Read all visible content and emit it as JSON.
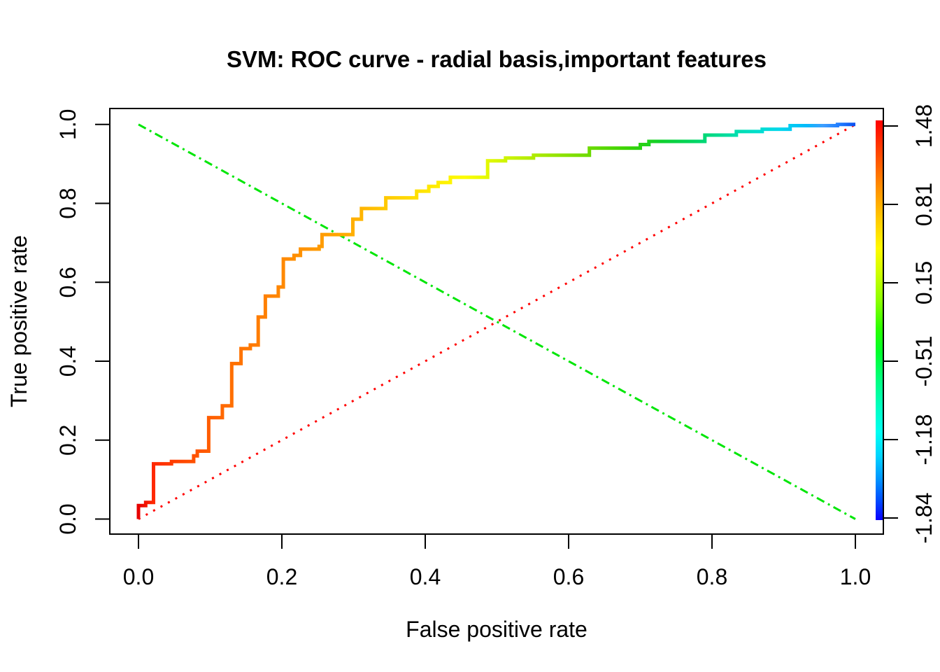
{
  "chart_data": {
    "type": "line",
    "title": "SVM: ROC curve - radial basis,important features",
    "xlabel": "False positive rate",
    "ylabel": "True positive rate",
    "xlim": [
      0,
      1
    ],
    "ylim": [
      0,
      1
    ],
    "grid": false,
    "background": "#FFFFFF",
    "x_tick_labels": [
      "0.0",
      "0.2",
      "0.4",
      "0.6",
      "0.8",
      "1.0"
    ],
    "y_tick_labels": [
      "0.0",
      "0.2",
      "0.4",
      "0.6",
      "0.8",
      "1.0"
    ],
    "series": [
      {
        "name": "roc-curve",
        "description": "SVM ROC step curve, colored by cutoff threshold (rainbow: red = high cutoff 1.48, blue = low cutoff -1.84)",
        "style": "step-solid",
        "stroke_width": 5,
        "points": [
          [
            0.0,
            0.0
          ],
          [
            0.0,
            0.034
          ],
          [
            0.01,
            0.034
          ],
          [
            0.01,
            0.042
          ],
          [
            0.021,
            0.042
          ],
          [
            0.021,
            0.14
          ],
          [
            0.046,
            0.14
          ],
          [
            0.046,
            0.146
          ],
          [
            0.077,
            0.146
          ],
          [
            0.077,
            0.16
          ],
          [
            0.082,
            0.16
          ],
          [
            0.082,
            0.172
          ],
          [
            0.098,
            0.172
          ],
          [
            0.098,
            0.257
          ],
          [
            0.117,
            0.257
          ],
          [
            0.117,
            0.287
          ],
          [
            0.13,
            0.287
          ],
          [
            0.13,
            0.394
          ],
          [
            0.143,
            0.394
          ],
          [
            0.143,
            0.432
          ],
          [
            0.156,
            0.432
          ],
          [
            0.156,
            0.441
          ],
          [
            0.167,
            0.441
          ],
          [
            0.167,
            0.512
          ],
          [
            0.177,
            0.512
          ],
          [
            0.177,
            0.565
          ],
          [
            0.195,
            0.565
          ],
          [
            0.195,
            0.588
          ],
          [
            0.202,
            0.588
          ],
          [
            0.202,
            0.659
          ],
          [
            0.217,
            0.659
          ],
          [
            0.217,
            0.668
          ],
          [
            0.226,
            0.668
          ],
          [
            0.226,
            0.684
          ],
          [
            0.252,
            0.684
          ],
          [
            0.252,
            0.691
          ],
          [
            0.256,
            0.691
          ],
          [
            0.256,
            0.721
          ],
          [
            0.299,
            0.721
          ],
          [
            0.299,
            0.76
          ],
          [
            0.311,
            0.76
          ],
          [
            0.311,
            0.787
          ],
          [
            0.345,
            0.787
          ],
          [
            0.345,
            0.814
          ],
          [
            0.388,
            0.814
          ],
          [
            0.388,
            0.831
          ],
          [
            0.405,
            0.831
          ],
          [
            0.405,
            0.843
          ],
          [
            0.418,
            0.843
          ],
          [
            0.418,
            0.853
          ],
          [
            0.435,
            0.853
          ],
          [
            0.435,
            0.866
          ],
          [
            0.487,
            0.866
          ],
          [
            0.487,
            0.908
          ],
          [
            0.512,
            0.908
          ],
          [
            0.512,
            0.915
          ],
          [
            0.551,
            0.915
          ],
          [
            0.551,
            0.922
          ],
          [
            0.629,
            0.922
          ],
          [
            0.629,
            0.94
          ],
          [
            0.7,
            0.94
          ],
          [
            0.7,
            0.949
          ],
          [
            0.712,
            0.949
          ],
          [
            0.712,
            0.957
          ],
          [
            0.79,
            0.957
          ],
          [
            0.79,
            0.973
          ],
          [
            0.834,
            0.973
          ],
          [
            0.834,
            0.982
          ],
          [
            0.87,
            0.982
          ],
          [
            0.87,
            0.988
          ],
          [
            0.909,
            0.988
          ],
          [
            0.909,
            0.997
          ],
          [
            0.975,
            0.997
          ],
          [
            0.975,
            1.0
          ],
          [
            1.0,
            1.0
          ]
        ],
        "gradient_stops": [
          {
            "offset": 0.0,
            "color": "#E60000"
          },
          {
            "offset": 0.02,
            "color": "#FF2800"
          },
          {
            "offset": 0.07,
            "color": "#FF4D00"
          },
          {
            "offset": 0.13,
            "color": "#FF6F00"
          },
          {
            "offset": 0.2,
            "color": "#FF8800"
          },
          {
            "offset": 0.26,
            "color": "#FF9D00"
          },
          {
            "offset": 0.31,
            "color": "#FFB400"
          },
          {
            "offset": 0.36,
            "color": "#FFD200"
          },
          {
            "offset": 0.41,
            "color": "#FFEA00"
          },
          {
            "offset": 0.455,
            "color": "#FDFD00"
          },
          {
            "offset": 0.5,
            "color": "#D8F700"
          },
          {
            "offset": 0.56,
            "color": "#A8E900"
          },
          {
            "offset": 0.62,
            "color": "#74DC00"
          },
          {
            "offset": 0.68,
            "color": "#3CD400"
          },
          {
            "offset": 0.73,
            "color": "#0FD02E"
          },
          {
            "offset": 0.78,
            "color": "#00D669"
          },
          {
            "offset": 0.82,
            "color": "#00DC9E"
          },
          {
            "offset": 0.86,
            "color": "#00DFC9"
          },
          {
            "offset": 0.895,
            "color": "#00D7ED"
          },
          {
            "offset": 0.93,
            "color": "#00BCFA"
          },
          {
            "offset": 0.955,
            "color": "#3E9EFF"
          },
          {
            "offset": 0.98,
            "color": "#1D79FF"
          },
          {
            "offset": 1.0,
            "color": "#0B4FEF"
          }
        ]
      },
      {
        "name": "chance-diagonal",
        "description": "random-classifier reference line",
        "style": "dotted",
        "color": "#FF0000",
        "stroke_width": 3,
        "points": [
          [
            0,
            0
          ],
          [
            1,
            1
          ]
        ]
      },
      {
        "name": "anti-diagonal",
        "description": "descending reference line",
        "style": "dash-dot",
        "color": "#00E606",
        "stroke_width": 3,
        "points": [
          [
            0,
            1
          ],
          [
            1,
            0
          ]
        ]
      }
    ],
    "colorbar": {
      "meaning": "cutoff threshold",
      "tick_labels": [
        "1.48",
        "0.81",
        "0.15",
        "-0.51",
        "-1.18",
        "-1.84"
      ],
      "gradient_stops": [
        {
          "offset": 0.0,
          "color": "#FF0000"
        },
        {
          "offset": 0.09,
          "color": "#FF4D00"
        },
        {
          "offset": 0.17,
          "color": "#FF9000"
        },
        {
          "offset": 0.25,
          "color": "#FFCC00"
        },
        {
          "offset": 0.32,
          "color": "#FFFA00"
        },
        {
          "offset": 0.38,
          "color": "#D0FF00"
        },
        {
          "offset": 0.45,
          "color": "#8CFF00"
        },
        {
          "offset": 0.52,
          "color": "#2BFF00"
        },
        {
          "offset": 0.58,
          "color": "#00FF2B"
        },
        {
          "offset": 0.65,
          "color": "#00FF80"
        },
        {
          "offset": 0.72,
          "color": "#00FFC4"
        },
        {
          "offset": 0.78,
          "color": "#00FFF2"
        },
        {
          "offset": 0.84,
          "color": "#00D4FF"
        },
        {
          "offset": 0.9,
          "color": "#0091FF"
        },
        {
          "offset": 0.95,
          "color": "#004DFF"
        },
        {
          "offset": 1.0,
          "color": "#0800FF"
        }
      ]
    }
  }
}
